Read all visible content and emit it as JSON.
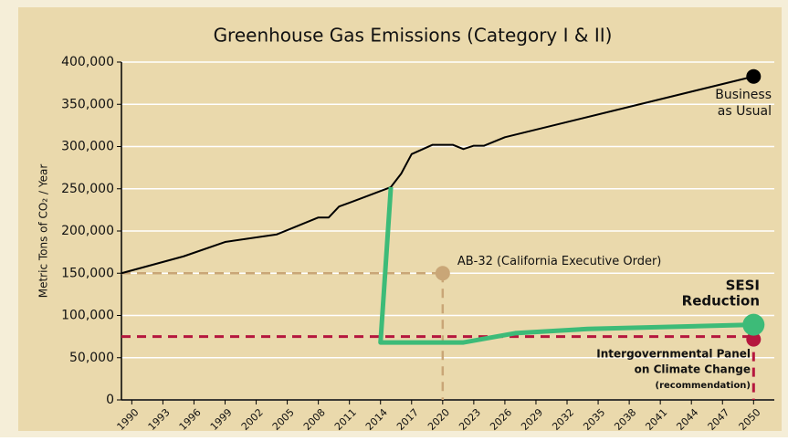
{
  "chart_data": {
    "type": "line",
    "title": "Greenhouse Gas Emissions (Category I & II)",
    "ylabel": "Metric Tons of CO₂ / Year",
    "xlim": [
      1989,
      2052
    ],
    "xticks": [
      1990,
      1993,
      1996,
      1999,
      2002,
      2005,
      2008,
      2011,
      2014,
      2017,
      2020,
      2023,
      2026,
      2029,
      2032,
      2035,
      2038,
      2041,
      2044,
      2047,
      2050
    ],
    "ylim": [
      0,
      400000
    ],
    "yticks": [
      0,
      {
        "value": 50000,
        "label": "50,000"
      },
      {
        "value": 100000,
        "label": "100,000"
      },
      {
        "value": 150000,
        "label": "150,000"
      },
      {
        "value": 200000,
        "label": "200,000"
      },
      {
        "value": 250000,
        "label": "250,000"
      },
      {
        "value": 300000,
        "label": "300,000"
      },
      {
        "value": 350000,
        "label": "350,000"
      },
      {
        "value": 400000,
        "label": "400,000"
      }
    ],
    "grid": true,
    "series": [
      {
        "label": [
          "Business",
          "as Usual"
        ],
        "color": "#000000",
        "x": [
          1989,
          1995,
          1999,
          2004,
          2008,
          2009,
          2010,
          2012,
          2015,
          2016,
          2017,
          2019,
          2021,
          2022,
          2023,
          2024,
          2025,
          2026,
          2050
        ],
        "values": [
          150000,
          170000,
          187000,
          196000,
          216000,
          216000,
          229000,
          238000,
          252000,
          268000,
          291000,
          302000,
          302000,
          297000,
          301000,
          301000,
          306000,
          311000,
          383000
        ]
      },
      {
        "label": [
          "SESI",
          "Reduction"
        ],
        "color": "#3dbb78",
        "x": [
          2015,
          2014,
          2022,
          2027,
          2034,
          2050
        ],
        "values": [
          252000,
          68000,
          68000,
          79000,
          84000,
          89000
        ]
      }
    ],
    "targets": [
      {
        "label": [
          "AB-32 (California Executive Order)"
        ],
        "color": "#c9a677",
        "x": 2020,
        "value": 150000
      },
      {
        "label": [
          "Intergovernmental Panel",
          "on Climate Change",
          "(recommendation)"
        ],
        "color": "#b5173e",
        "x": 2050,
        "value": 75000
      }
    ]
  }
}
